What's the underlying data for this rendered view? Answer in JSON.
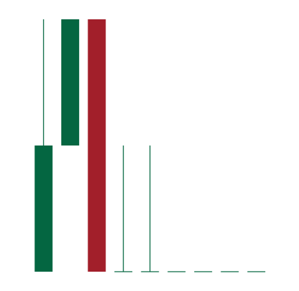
{
  "chart_data": {
    "type": "candlestick",
    "title": "",
    "xlabel": "",
    "ylabel": "",
    "ylim": [
      0,
      10
    ],
    "colors": {
      "up": "#046641",
      "down": "#A21F2A",
      "background": "#FFFFFF"
    },
    "candles": [
      {
        "open": 0,
        "high": 10,
        "low": 0,
        "close": 5
      },
      {
        "open": 5,
        "high": 10,
        "low": 5,
        "close": 10
      },
      {
        "open": 10,
        "high": 10,
        "low": 0,
        "close": 0
      },
      {
        "open": 0,
        "high": 5,
        "low": 0,
        "close": 0
      },
      {
        "open": 0,
        "high": 5,
        "low": 0,
        "close": 0
      },
      {
        "open": 0,
        "high": 0,
        "low": 0,
        "close": 0
      },
      {
        "open": 0,
        "high": 0,
        "low": 0,
        "close": 0
      },
      {
        "open": 0,
        "high": 0,
        "low": 0,
        "close": 0
      },
      {
        "open": 0,
        "high": 0,
        "low": 0,
        "close": 0
      }
    ]
  }
}
